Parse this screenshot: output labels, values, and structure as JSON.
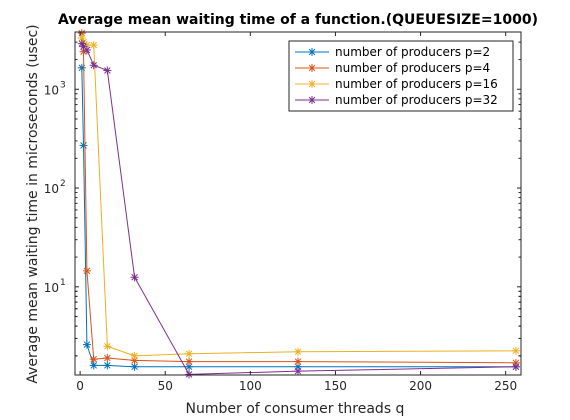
{
  "chart_data": {
    "type": "line",
    "title": "Average mean waiting time of a function.(QUEUESIZE=1000)",
    "xlabel": "Number of consumer threads q",
    "ylabel": "Average mean waiting time in microseconds (usec)",
    "xlim": [
      -3,
      259
    ],
    "ylim": [
      1.28,
      3800
    ],
    "y_scale": "log",
    "x_ticks": [
      0,
      50,
      100,
      150,
      200,
      250
    ],
    "y_ticks": [
      {
        "value": 10,
        "label": "10",
        "exp": "1"
      },
      {
        "value": 100,
        "label": "10",
        "exp": "2"
      },
      {
        "value": 1000,
        "label": "10",
        "exp": "3"
      }
    ],
    "grid": false,
    "legend_position": "top-right",
    "marker": "asterisk",
    "series": [
      {
        "name": "number of producers p=2",
        "color": "#0072BD",
        "x": [
          1,
          2,
          4,
          8,
          16,
          32,
          64,
          128,
          256
        ],
        "y": [
          1650,
          270,
          2.6,
          1.6,
          1.6,
          1.55,
          1.55,
          1.55,
          1.55
        ]
      },
      {
        "name": "number of producers p=4",
        "color": "#D95319",
        "x": [
          1,
          2,
          4,
          8,
          16,
          32,
          64,
          128,
          256
        ],
        "y": [
          3700,
          2400,
          14.5,
          1.85,
          1.9,
          1.8,
          1.75,
          1.75,
          1.7
        ]
      },
      {
        "name": "number of producers p=16",
        "color": "#EDB120",
        "x": [
          1,
          2,
          4,
          8,
          16,
          32,
          64,
          128,
          256
        ],
        "y": [
          3300,
          3000,
          2800,
          2800,
          2.5,
          2.0,
          2.1,
          2.2,
          2.25
        ]
      },
      {
        "name": "number of producers p=32",
        "color": "#7E2F8E",
        "x": [
          1,
          2,
          4,
          8,
          16,
          32,
          64,
          128,
          256
        ],
        "y": [
          2900,
          2700,
          2500,
          1750,
          1550,
          12.5,
          1.3,
          1.4,
          1.55
        ]
      }
    ]
  }
}
